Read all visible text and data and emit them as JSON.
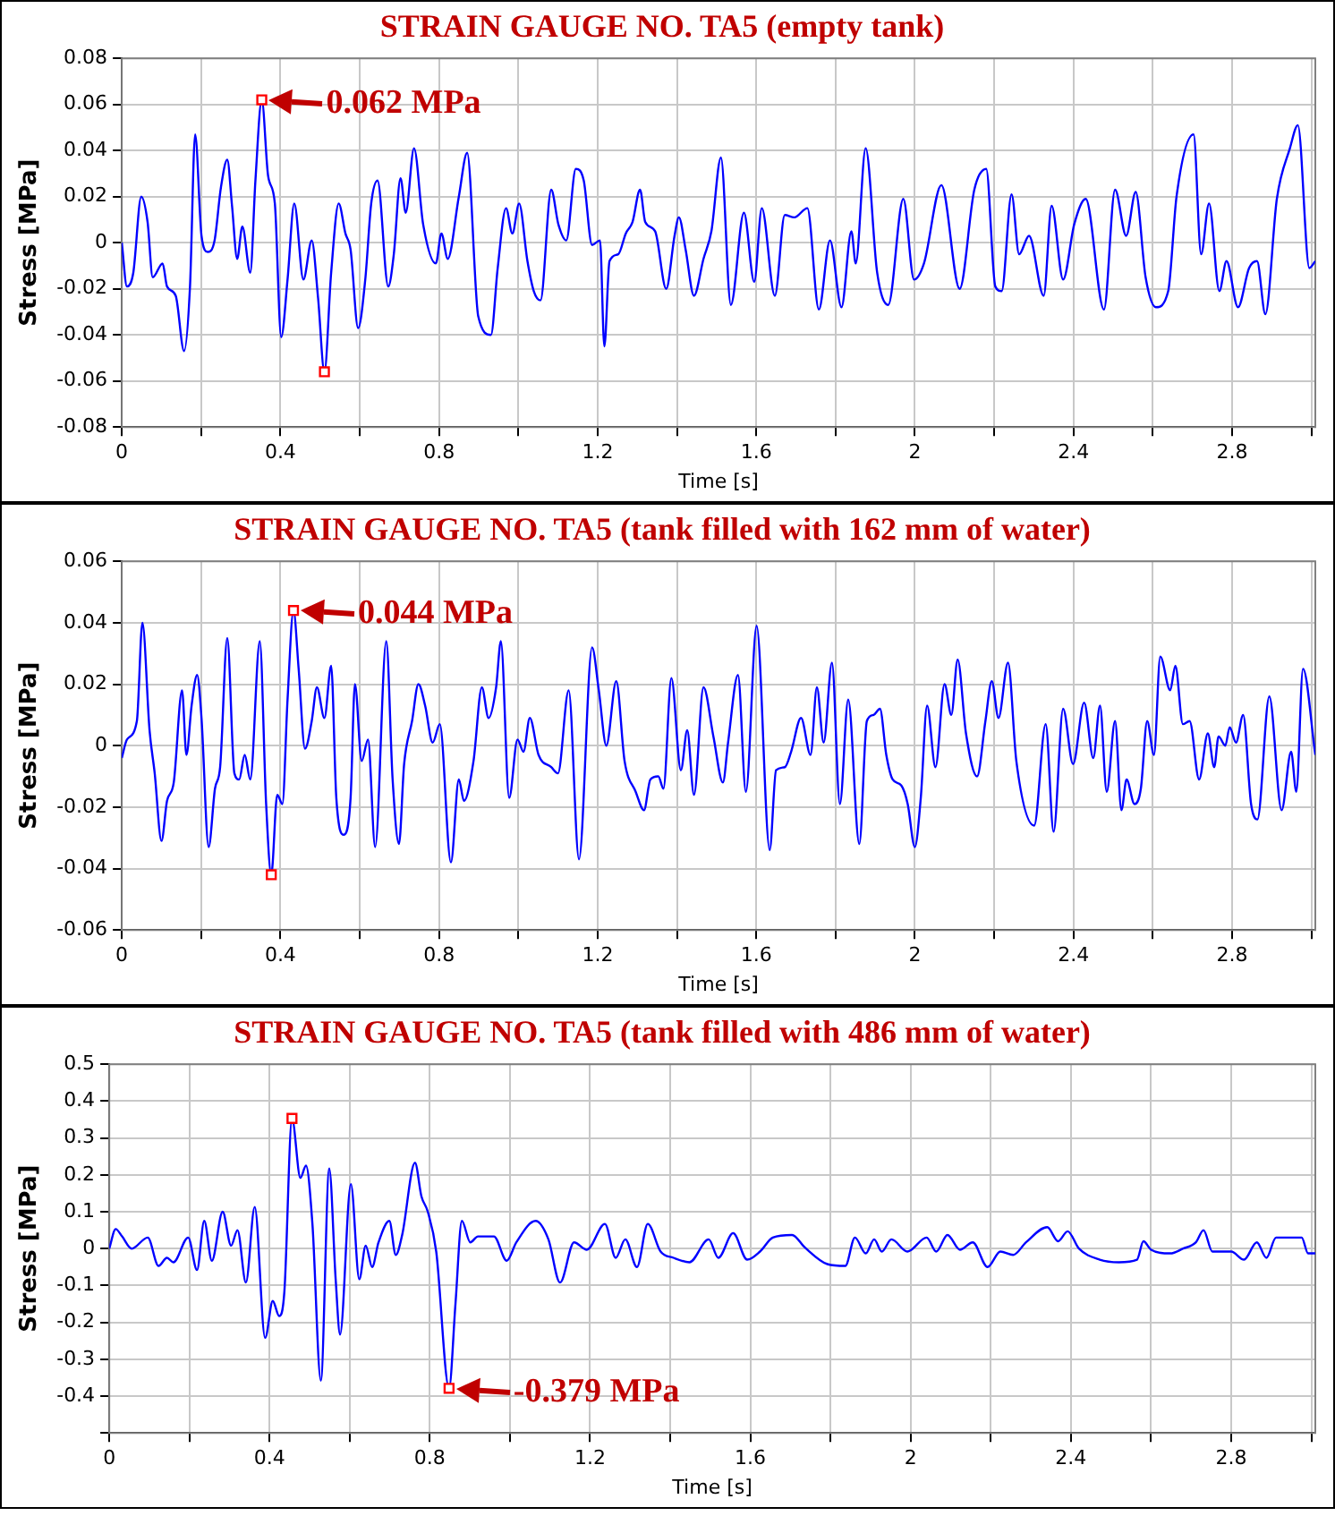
{
  "chart_data": [
    {
      "type": "line",
      "title": "STRAIN GAUGE NO. TA5 (empty tank)",
      "xlabel": "Time [s]",
      "ylabel": "Stress [MPa]",
      "grid": true,
      "xlim": [
        0,
        3.01
      ],
      "xticks": [
        0,
        {
          "value": 0.2,
          "label": null
        },
        0.4,
        {
          "value": 0.6,
          "label": null
        },
        0.8,
        {
          "value": 1,
          "label": null
        },
        1.2,
        {
          "value": 1.4,
          "label": null
        },
        1.6,
        {
          "value": 1.8,
          "label": null
        },
        2,
        {
          "value": 2.2,
          "label": null
        },
        2.4,
        {
          "value": 2.6,
          "label": null
        },
        2.8,
        {
          "value": 3,
          "label": null
        }
      ],
      "ylim": [
        -0.08,
        0.08
      ],
      "yticks": [
        -0.08,
        -0.06,
        -0.04,
        -0.02,
        0,
        0.02,
        0.04,
        0.06,
        0.08
      ],
      "series": [
        {
          "type": "line",
          "color": "#0000ff",
          "x": [
            0,
            0.013,
            0.029,
            0.049,
            0.065,
            0.078,
            0.103,
            0.114,
            0.136,
            0.157,
            0.172,
            0.185,
            0.201,
            0.217,
            0.234,
            0.25,
            0.266,
            0.278,
            0.291,
            0.304,
            0.324,
            0.337,
            0.353,
            0.369,
            0.386,
            0.402,
            0.418,
            0.435,
            0.458,
            0.479,
            0.495,
            0.511,
            0.528,
            0.547,
            0.564,
            0.577,
            0.596,
            0.614,
            0.629,
            0.645,
            0.672,
            0.686,
            0.703,
            0.716,
            0.737,
            0.76,
            0.792,
            0.806,
            0.822,
            0.85,
            0.871,
            0.899,
            0.931,
            0.948,
            0.969,
            0.985,
            1.002,
            1.023,
            1.039,
            1.056,
            1.083,
            1.101,
            1.121,
            1.145,
            1.165,
            1.186,
            1.206,
            1.217,
            1.23,
            1.252,
            1.271,
            1.288,
            1.307,
            1.32,
            1.345,
            1.373,
            1.394,
            1.405,
            1.422,
            1.443,
            1.467,
            1.487,
            1.511,
            1.536,
            1.569,
            1.595,
            1.614,
            1.647,
            1.672,
            1.696,
            1.729,
            1.758,
            1.786,
            1.815,
            1.84,
            1.851,
            1.876,
            1.905,
            1.933,
            1.971,
            1.998,
            2.023,
            2.067,
            2.113,
            2.15,
            2.18,
            2.203,
            2.219,
            2.244,
            2.263,
            2.288,
            2.325,
            2.345,
            2.374,
            2.402,
            2.431,
            2.477,
            2.505,
            2.533,
            2.557,
            2.582,
            2.608,
            2.639,
            2.66,
            2.703,
            2.722,
            2.742,
            2.768,
            2.786,
            2.815,
            2.843,
            2.863,
            2.884,
            2.913,
            2.946,
            2.966,
            2.995,
            3.01
          ],
          "values": [
            0,
            -0.019,
            -0.013,
            0.02,
            0.009,
            -0.015,
            -0.009,
            -0.019,
            -0.023,
            -0.047,
            -0.019,
            0.047,
            0.003,
            -0.004,
            0.001,
            0.024,
            0.036,
            0.016,
            -0.007,
            0.007,
            -0.013,
            0.027,
            0.062,
            0.029,
            0.017,
            -0.041,
            -0.016,
            0.017,
            -0.016,
            0.001,
            -0.024,
            -0.056,
            -0.013,
            0.017,
            0.004,
            -0.003,
            -0.037,
            -0.016,
            0.017,
            0.027,
            -0.019,
            -0.005,
            0.028,
            0.013,
            0.041,
            0.008,
            -0.009,
            0.004,
            -0.007,
            0.02,
            0.039,
            -0.032,
            -0.04,
            -0.011,
            0.015,
            0.004,
            0.017,
            -0.008,
            -0.021,
            -0.025,
            0.023,
            0.008,
            0.001,
            0.032,
            0.027,
            -0.001,
            0.001,
            -0.045,
            -0.008,
            -0.005,
            0.004,
            0.009,
            0.023,
            0.009,
            0.005,
            -0.02,
            0.003,
            0.011,
            -0.003,
            -0.023,
            -0.007,
            0.005,
            0.037,
            -0.027,
            0.013,
            -0.017,
            0.015,
            -0.023,
            0.012,
            0.011,
            0.015,
            -0.029,
            0.001,
            -0.028,
            0.005,
            -0.009,
            0.041,
            -0.013,
            -0.027,
            0.019,
            -0.016,
            -0.009,
            0.025,
            -0.02,
            0.023,
            0.032,
            -0.019,
            -0.021,
            0.021,
            -0.005,
            0.003,
            -0.023,
            0.016,
            -0.016,
            0.008,
            0.019,
            -0.029,
            0.023,
            0.003,
            0.022,
            -0.015,
            -0.028,
            -0.021,
            0.02,
            0.047,
            -0.005,
            0.017,
            -0.021,
            -0.008,
            -0.028,
            -0.011,
            -0.008,
            -0.031,
            0.019,
            0.041,
            0.051,
            -0.011,
            -0.008
          ]
        },
        {
          "type": "scatter",
          "color": "#ff0000",
          "marker": "square",
          "x": [
            0.353,
            0.511
          ],
          "values": [
            0.062,
            -0.056
          ]
        }
      ],
      "annotations": [
        {
          "text": "0.062 MPa",
          "x": 0.353,
          "y": 0.062
        }
      ]
    },
    {
      "type": "line",
      "title": "STRAIN GAUGE NO. TA5 (tank filled with 162 mm of water)",
      "xlabel": "Time [s]",
      "ylabel": "Stress [MPa]",
      "grid": true,
      "xlim": [
        0,
        3.01
      ],
      "xticks": [
        0,
        {
          "value": 0.2,
          "label": null
        },
        0.4,
        {
          "value": 0.6,
          "label": null
        },
        0.8,
        {
          "value": 1,
          "label": null
        },
        1.2,
        {
          "value": 1.4,
          "label": null
        },
        1.6,
        {
          "value": 1.8,
          "label": null
        },
        2,
        {
          "value": 2.2,
          "label": null
        },
        2.4,
        {
          "value": 2.6,
          "label": null
        },
        2.8,
        {
          "value": 3,
          "label": null
        }
      ],
      "ylim": [
        -0.06,
        0.06
      ],
      "yticks": [
        -0.06,
        -0.04,
        -0.02,
        0,
        0.02,
        0.04,
        0.06
      ],
      "series": [
        {
          "type": "line",
          "color": "#0000ff",
          "x": [
            0,
            0.013,
            0.038,
            0.052,
            0.07,
            0.083,
            0.1,
            0.114,
            0.131,
            0.152,
            0.163,
            0.176,
            0.19,
            0.201,
            0.219,
            0.235,
            0.248,
            0.266,
            0.284,
            0.296,
            0.31,
            0.324,
            0.348,
            0.364,
            0.377,
            0.392,
            0.405,
            0.418,
            0.433,
            0.446,
            0.462,
            0.479,
            0.492,
            0.511,
            0.528,
            0.541,
            0.56,
            0.577,
            0.588,
            0.605,
            0.621,
            0.639,
            0.667,
            0.683,
            0.699,
            0.712,
            0.732,
            0.748,
            0.765,
            0.784,
            0.802,
            0.83,
            0.85,
            0.863,
            0.887,
            0.908,
            0.925,
            0.944,
            0.956,
            0.977,
            0.998,
            1.013,
            1.029,
            1.051,
            1.083,
            1.1,
            1.127,
            1.153,
            1.186,
            1.203,
            1.222,
            1.247,
            1.268,
            1.296,
            1.317,
            1.333,
            1.353,
            1.366,
            1.386,
            1.41,
            1.426,
            1.443,
            1.467,
            1.492,
            1.516,
            1.529,
            1.554,
            1.574,
            1.601,
            1.634,
            1.65,
            1.672,
            1.688,
            1.713,
            1.737,
            1.753,
            1.77,
            1.791,
            1.811,
            1.832,
            1.86,
            1.879,
            1.896,
            1.912,
            1.928,
            1.944,
            1.966,
            1.982,
            2,
            2.015,
            2.031,
            2.052,
            2.075,
            2.092,
            2.108,
            2.129,
            2.157,
            2.178,
            2.194,
            2.211,
            2.235,
            2.256,
            2.301,
            2.33,
            2.35,
            2.374,
            2.399,
            2.427,
            2.45,
            2.467,
            2.484,
            2.505,
            2.521,
            2.534,
            2.554,
            2.57,
            2.586,
            2.603,
            2.619,
            2.644,
            2.657,
            2.676,
            2.693,
            2.717,
            2.739,
            2.755,
            2.766,
            2.783,
            2.794,
            2.81,
            2.828,
            2.848,
            2.864,
            2.894,
            2.925,
            2.949,
            2.962,
            2.979,
            3.01
          ],
          "values": [
            -0.004,
            0.002,
            0.008,
            0.04,
            0.005,
            -0.009,
            -0.031,
            -0.018,
            -0.012,
            0.018,
            -0.003,
            0.013,
            0.023,
            0.009,
            -0.033,
            -0.014,
            -0.007,
            0.035,
            -0.009,
            -0.011,
            -0.003,
            -0.011,
            0.034,
            -0.019,
            -0.042,
            -0.016,
            -0.019,
            0.015,
            0.044,
            0.025,
            -0.001,
            0.008,
            0.019,
            0.009,
            0.026,
            -0.017,
            -0.029,
            -0.017,
            0.02,
            -0.005,
            0.002,
            -0.033,
            0.034,
            -0.011,
            -0.032,
            -0.006,
            0.008,
            0.02,
            0.013,
            0.001,
            0.007,
            -0.038,
            -0.011,
            -0.018,
            -0.005,
            0.019,
            0.009,
            0.019,
            0.034,
            -0.017,
            0.002,
            -0.002,
            0.009,
            -0.003,
            -0.007,
            -0.009,
            0.018,
            -0.037,
            0.032,
            0.018,
            0,
            0.021,
            -0.005,
            -0.015,
            -0.021,
            -0.011,
            -0.01,
            -0.014,
            0.022,
            -0.008,
            0.005,
            -0.016,
            0.019,
            0.003,
            -0.012,
            0.001,
            0.023,
            -0.015,
            0.039,
            -0.034,
            -0.008,
            -0.007,
            -0.002,
            0.009,
            -0.003,
            0.019,
            0.001,
            0.027,
            -0.019,
            0.015,
            -0.032,
            0.008,
            0.01,
            0.012,
            -0.003,
            -0.011,
            -0.013,
            -0.019,
            -0.033,
            -0.017,
            0.013,
            -0.007,
            0.02,
            0.01,
            0.028,
            0.004,
            -0.01,
            0.008,
            0.021,
            0.009,
            0.027,
            -0.005,
            -0.026,
            0.007,
            -0.028,
            0.012,
            -0.006,
            0.014,
            -0.004,
            0.013,
            -0.015,
            0.008,
            -0.021,
            -0.011,
            -0.019,
            -0.014,
            0.008,
            -0.003,
            0.029,
            0.018,
            0.026,
            0.007,
            0.008,
            -0.011,
            0.004,
            -0.007,
            0.003,
            0,
            0.006,
            0.001,
            0.01,
            -0.019,
            -0.024,
            0.016,
            -0.021,
            -0.002,
            -0.015,
            0.025,
            -0.003
          ]
        },
        {
          "type": "scatter",
          "color": "#ff0000",
          "marker": "square",
          "x": [
            0.433,
            0.377
          ],
          "values": [
            0.044,
            -0.042
          ]
        }
      ],
      "annotations": [
        {
          "text": "0.044 MPa",
          "x": 0.433,
          "y": 0.044
        }
      ]
    },
    {
      "type": "line",
      "title": "STRAIN GAUGE NO. TA5 (tank filled with 486 mm of water)",
      "xlabel": "Time [s]",
      "ylabel": "Stress [MPa]",
      "grid": true,
      "xlim": [
        0,
        3.01
      ],
      "xticks": [
        0,
        {
          "value": 0.2,
          "label": null
        },
        0.4,
        {
          "value": 0.6,
          "label": null
        },
        0.8,
        {
          "value": 1,
          "label": null
        },
        1.2,
        {
          "value": 1.4,
          "label": null
        },
        1.6,
        {
          "value": 1.8,
          "label": null
        },
        2,
        {
          "value": 2.2,
          "label": null
        },
        2.4,
        {
          "value": 2.6,
          "label": null
        },
        2.8,
        {
          "value": 3,
          "label": null
        }
      ],
      "ylim": [
        -0.5,
        0.5
      ],
      "yticks": [
        {
          "value": -0.5,
          "label": null
        },
        -0.4,
        -0.3,
        -0.2,
        -0.1,
        0,
        0.1,
        0.2,
        0.3,
        0.4,
        0.5
      ],
      "series": [
        {
          "type": "line",
          "color": "#0000ff",
          "x": [
            0,
            0.016,
            0.032,
            0.056,
            0.096,
            0.123,
            0.144,
            0.16,
            0.197,
            0.219,
            0.237,
            0.256,
            0.283,
            0.304,
            0.32,
            0.341,
            0.363,
            0.389,
            0.408,
            0.424,
            0.437,
            0.456,
            0.477,
            0.491,
            0.507,
            0.528,
            0.549,
            0.565,
            0.576,
            0.603,
            0.624,
            0.64,
            0.656,
            0.672,
            0.699,
            0.715,
            0.731,
            0.763,
            0.779,
            0.795,
            0.816,
            0.848,
            0.864,
            0.88,
            0.901,
            0.92,
            0.96,
            0.992,
            1.016,
            1.064,
            1.096,
            1.125,
            1.16,
            1.192,
            1.237,
            1.264,
            1.288,
            1.317,
            1.344,
            1.376,
            1.408,
            1.448,
            1.496,
            1.52,
            1.557,
            1.592,
            1.624,
            1.656,
            1.704,
            1.736,
            1.792,
            1.837,
            1.861,
            1.888,
            1.909,
            1.928,
            1.952,
            1.992,
            2.04,
            2.064,
            2.092,
            2.123,
            2.155,
            2.192,
            2.224,
            2.256,
            2.288,
            2.341,
            2.368,
            2.392,
            2.42,
            2.472,
            2.52,
            2.565,
            2.581,
            2.6,
            2.648,
            2.68,
            2.712,
            2.731,
            2.753,
            2.8,
            2.832,
            2.864,
            2.888,
            2.912,
            2.976,
            2.992,
            3.01
          ],
          "values": [
            0,
            0.053,
            0.033,
            0,
            0.03,
            -0.047,
            -0.025,
            -0.037,
            0.03,
            -0.058,
            0.075,
            -0.033,
            0.1,
            0.008,
            0.05,
            -0.092,
            0.113,
            -0.242,
            -0.142,
            -0.183,
            -0.117,
            0.353,
            0.192,
            0.225,
            0.067,
            -0.358,
            0.217,
            -0.083,
            -0.233,
            0.175,
            -0.083,
            0.008,
            -0.05,
            0.017,
            0.075,
            -0.017,
            0.037,
            0.233,
            0.142,
            0.1,
            -0.008,
            -0.379,
            -0.15,
            0.075,
            0.017,
            0.033,
            0.033,
            -0.033,
            0.017,
            0.075,
            0.025,
            -0.092,
            0.017,
            -0.003,
            0.067,
            -0.025,
            0.025,
            -0.05,
            0.067,
            -0.008,
            -0.025,
            -0.037,
            0.025,
            -0.025,
            0.042,
            -0.03,
            -0.008,
            0.03,
            0.037,
            0.003,
            -0.042,
            -0.047,
            0.03,
            -0.013,
            0.025,
            -0.008,
            0.025,
            -0.008,
            0.03,
            -0.008,
            0.037,
            -0.003,
            0.017,
            -0.05,
            -0.008,
            -0.017,
            0.017,
            0.058,
            0.02,
            0.047,
            0,
            -0.03,
            -0.037,
            -0.03,
            0.02,
            -0.003,
            -0.013,
            0,
            0.017,
            0.05,
            -0.008,
            -0.008,
            -0.03,
            0.017,
            -0.025,
            0.03,
            0.03,
            -0.013,
            -0.013
          ]
        },
        {
          "type": "scatter",
          "color": "#ff0000",
          "marker": "square",
          "x": [
            0.456,
            0.848
          ],
          "values": [
            0.353,
            -0.379
          ]
        }
      ],
      "annotations": [
        {
          "text": "-0.379 MPa",
          "x": 0.848,
          "y": -0.379
        }
      ]
    }
  ]
}
